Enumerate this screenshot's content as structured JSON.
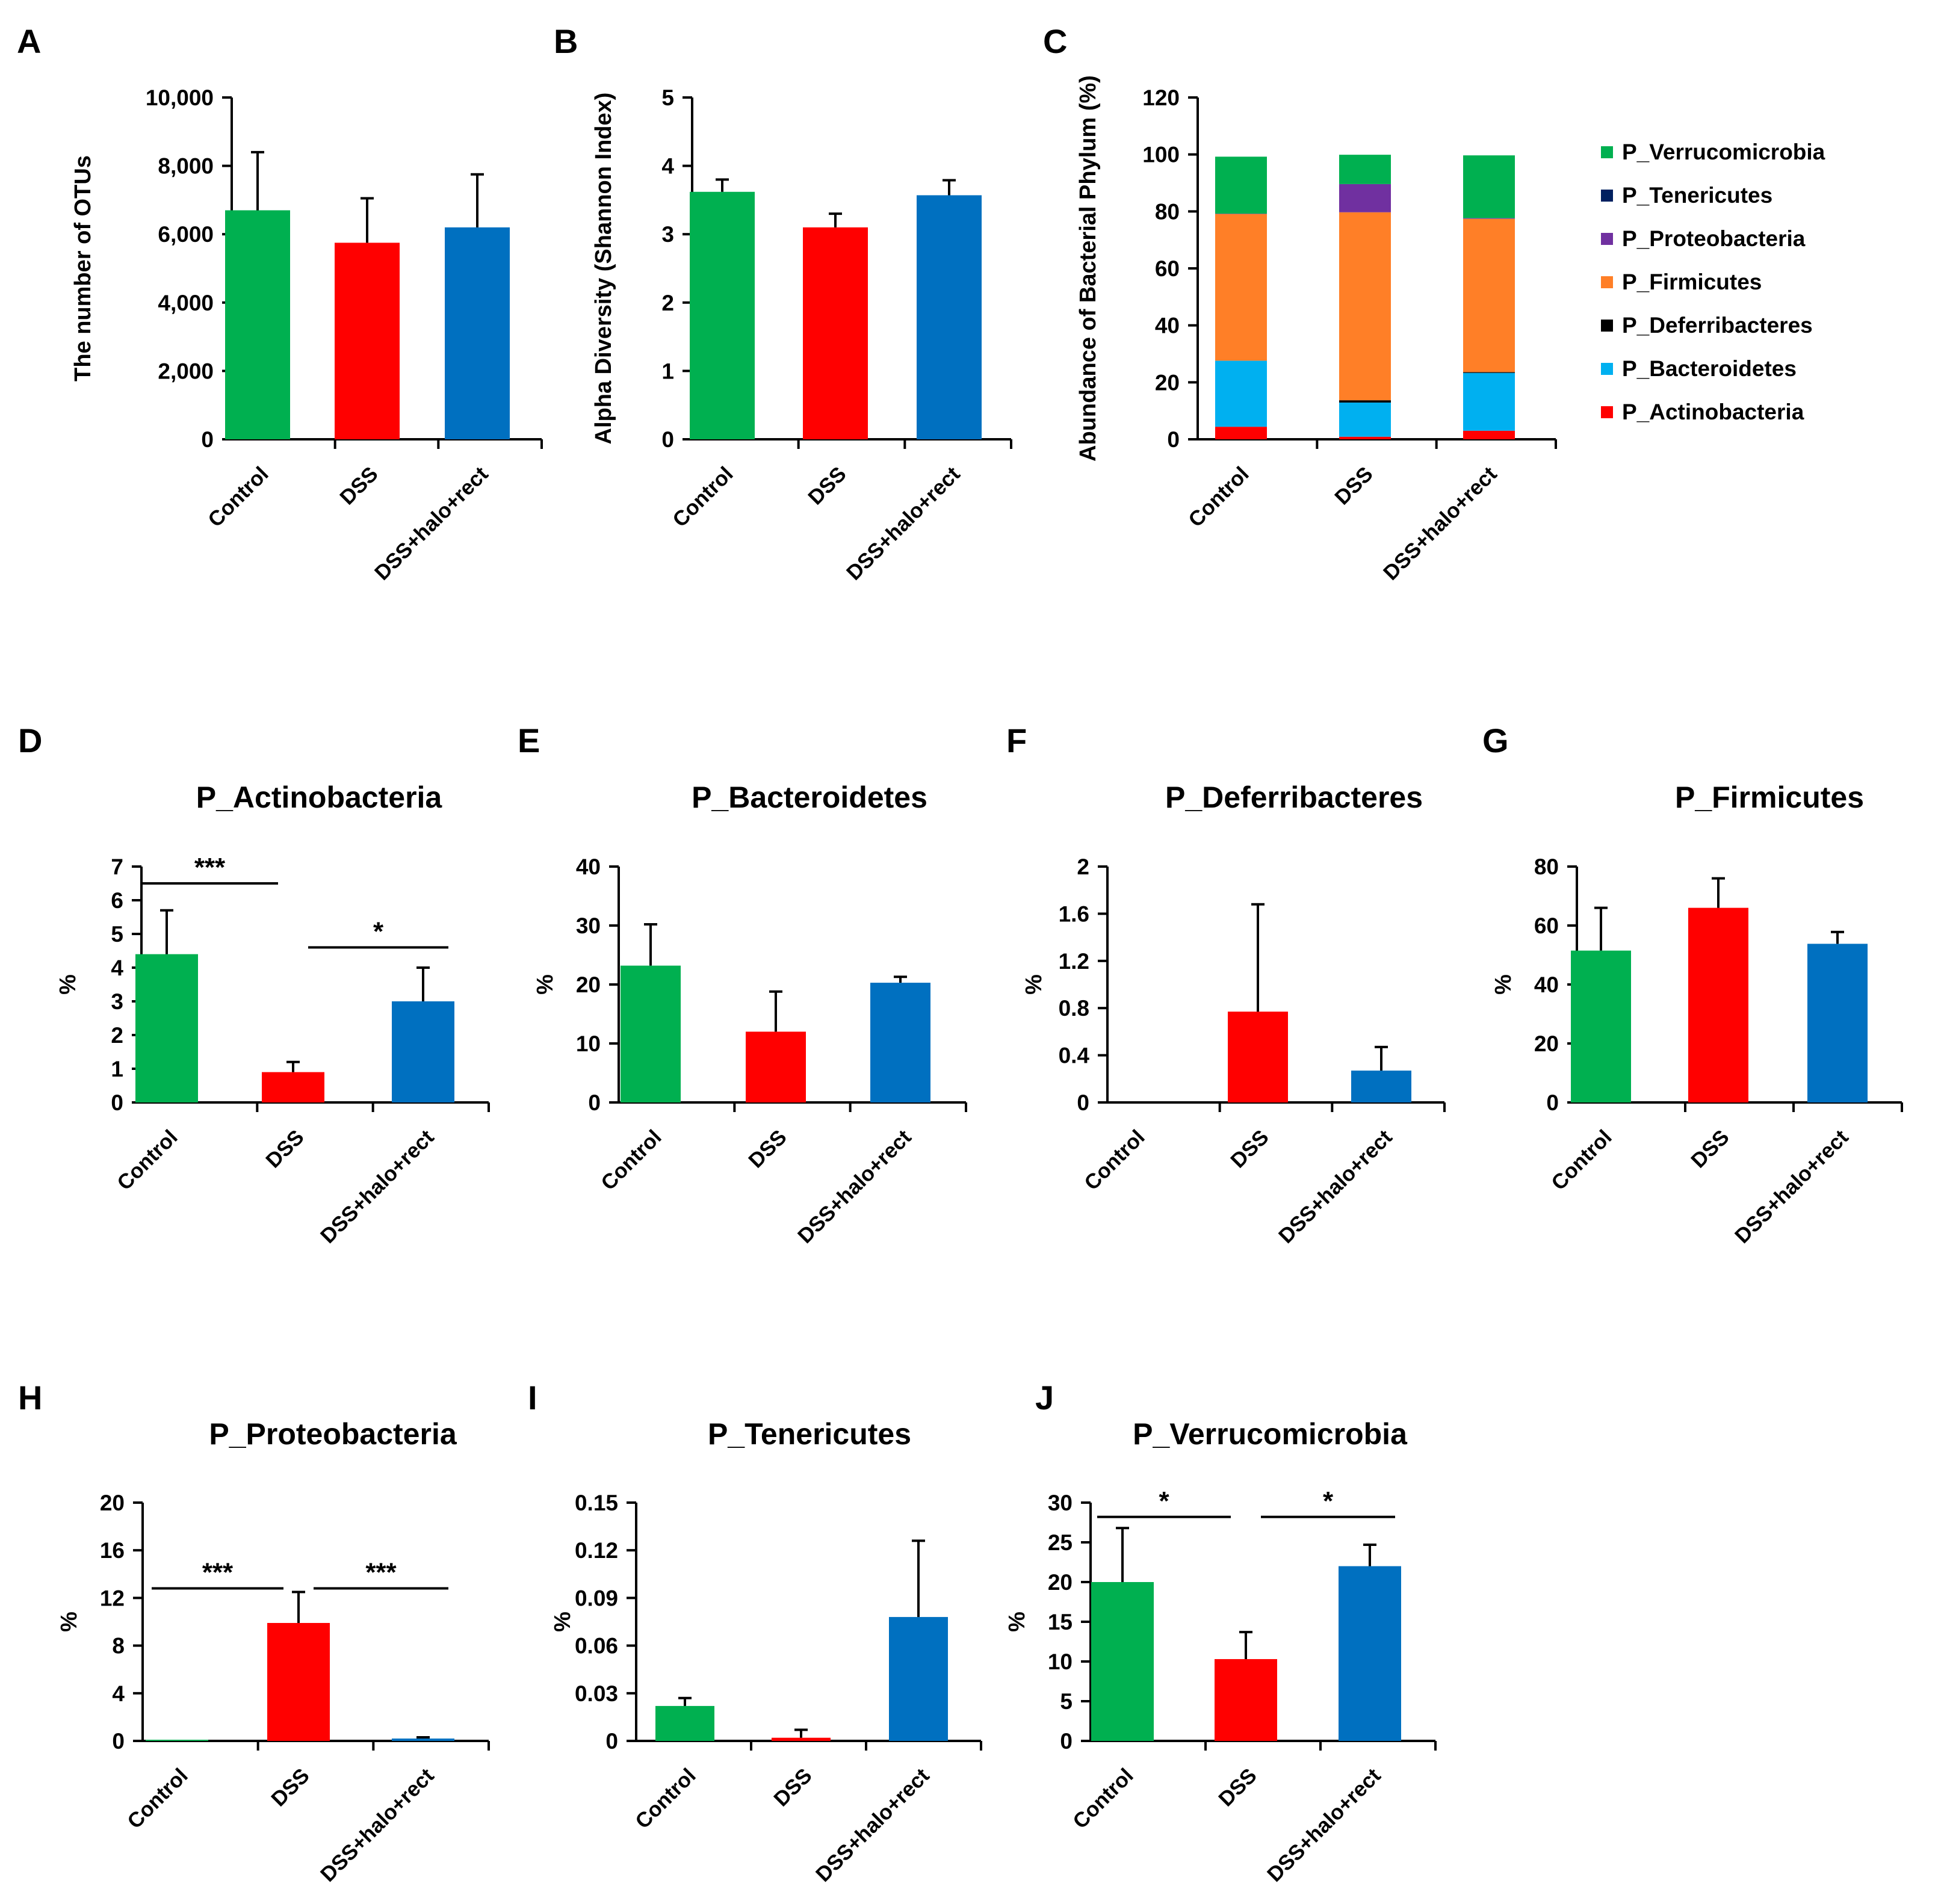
{
  "colors": {
    "control": "#00B050",
    "dss": "#FF0000",
    "treated": "#0070C0",
    "verrucomicrobia": "#00B050",
    "tenericutes": "#002060",
    "proteobacteria": "#7030A0",
    "firmicutes": "#FF7F27",
    "deferribacteres": "#000000",
    "bacteroidetes": "#00B0F0",
    "actinobacteria": "#FF0000"
  },
  "chart_data": [
    {
      "id": "A",
      "letter": "A",
      "type": "bar",
      "title": "",
      "categories": [
        "Control",
        "DSS",
        "DSS+halo+rect"
      ],
      "values": [
        6700,
        5750,
        6200
      ],
      "errors": [
        1700,
        1300,
        1550
      ],
      "ylabel": "The number of OTUs",
      "ylim": [
        0,
        10000
      ],
      "ticks": [
        "0",
        "2,000",
        "4,000",
        "6,000",
        "8,000",
        "10,000"
      ],
      "significance": []
    },
    {
      "id": "B",
      "letter": "B",
      "type": "bar",
      "title": "",
      "categories": [
        "Control",
        "DSS",
        "DSS+halo+rect"
      ],
      "values": [
        3.62,
        3.1,
        3.57
      ],
      "errors": [
        0.18,
        0.2,
        0.22
      ],
      "ylabel": "Alpha Diversity (Shannon Index)",
      "ylim": [
        0,
        5
      ],
      "ticks": [
        "0",
        "1",
        "2",
        "3",
        "4",
        "5"
      ],
      "significance": []
    },
    {
      "id": "C",
      "letter": "C",
      "type": "stacked-bar",
      "title": "",
      "categories": [
        "Control",
        "DSS",
        "DSS+halo+rect"
      ],
      "ylabel": "Abundance of Bacterial Phylum (%)",
      "ylim": [
        0,
        120
      ],
      "ticks": [
        "0",
        "20",
        "40",
        "60",
        "80",
        "100",
        "120"
      ],
      "series": [
        {
          "name": "P_Actinobacteria",
          "color_key": "actinobacteria",
          "values": [
            4.4,
            0.9,
            3.0
          ]
        },
        {
          "name": "P_Bacteroidetes",
          "color_key": "bacteroidetes",
          "values": [
            23.2,
            12.0,
            20.3
          ]
        },
        {
          "name": "P_Deferribacteres",
          "color_key": "deferribacteres",
          "values": [
            0.0,
            0.8,
            0.3
          ]
        },
        {
          "name": "P_Firmicutes",
          "color_key": "firmicutes",
          "values": [
            51.5,
            66.0,
            53.8
          ]
        },
        {
          "name": "P_Proteobacteria",
          "color_key": "proteobacteria",
          "values": [
            0.1,
            9.9,
            0.2
          ]
        },
        {
          "name": "P_Tenericutes",
          "color_key": "tenericutes",
          "values": [
            0.02,
            0.0,
            0.08
          ]
        },
        {
          "name": "P_Verrucomicrobia",
          "color_key": "verrucomicrobia",
          "values": [
            20.0,
            10.3,
            22.0
          ]
        }
      ],
      "legend": [
        "P_Verrucomicrobia",
        "P_Tenericutes",
        "P_Proteobacteria",
        "P_Firmicutes",
        "P_Deferribacteres",
        "P_Bacteroidetes",
        "P_Actinobacteria"
      ]
    },
    {
      "id": "D",
      "letter": "D",
      "type": "bar",
      "title": "P_Actinobacteria",
      "categories": [
        "Control",
        "DSS",
        "DSS+halo+rect"
      ],
      "values": [
        4.4,
        0.9,
        3.0
      ],
      "errors": [
        1.3,
        0.3,
        1.0
      ],
      "ylabel": "%",
      "ylim": [
        0,
        7
      ],
      "ticks": [
        "0",
        "1",
        "2",
        "3",
        "4",
        "5",
        "6",
        "7"
      ],
      "significance": [
        {
          "from": 0,
          "to": 1,
          "label": "***",
          "y": 6.5
        },
        {
          "from": 1,
          "to": 2,
          "label": "*",
          "y": 4.6
        }
      ]
    },
    {
      "id": "E",
      "letter": "E",
      "type": "bar",
      "title": "P_Bacteroidetes",
      "categories": [
        "Control",
        "DSS",
        "DSS+halo+rect"
      ],
      "values": [
        23.2,
        12.0,
        20.3
      ],
      "errors": [
        7.0,
        6.8,
        1.0
      ],
      "ylabel": "%",
      "ylim": [
        0,
        40
      ],
      "ticks": [
        "0",
        "10",
        "20",
        "30",
        "40"
      ],
      "significance": []
    },
    {
      "id": "F",
      "letter": "F",
      "type": "bar",
      "title": "P_Deferribacteres",
      "categories": [
        "Control",
        "DSS",
        "DSS+halo+rect"
      ],
      "values": [
        0.0,
        0.77,
        0.27
      ],
      "errors": [
        0.0,
        0.91,
        0.2
      ],
      "ylabel": "%",
      "ylim": [
        0,
        2
      ],
      "ticks": [
        "0",
        "0.4",
        "0.8",
        "1.2",
        "1.6",
        "2"
      ],
      "significance": []
    },
    {
      "id": "G",
      "letter": "G",
      "type": "bar",
      "title": "P_Firmicutes",
      "categories": [
        "Control",
        "DSS",
        "DSS+halo+rect"
      ],
      "values": [
        51.5,
        66.0,
        53.8
      ],
      "errors": [
        14.5,
        10.0,
        4.0
      ],
      "ylabel": "%",
      "ylim": [
        0,
        80
      ],
      "ticks": [
        "0",
        "20",
        "40",
        "60",
        "80"
      ],
      "significance": []
    },
    {
      "id": "H",
      "letter": "H",
      "type": "bar",
      "title": "P_Proteobacteria",
      "categories": [
        "Control",
        "DSS",
        "DSS+halo+rect"
      ],
      "values": [
        0.1,
        9.9,
        0.2
      ],
      "errors": [
        0.0,
        2.6,
        0.1
      ],
      "ylabel": "%",
      "ylim": [
        0,
        20
      ],
      "ticks": [
        "0",
        "4",
        "8",
        "12",
        "16",
        "20"
      ],
      "significance": [
        {
          "from": 0,
          "to": 1,
          "label": "***",
          "y": 12.8
        },
        {
          "from": 1,
          "to": 2,
          "label": "***",
          "y": 12.8
        }
      ]
    },
    {
      "id": "I",
      "letter": "I",
      "type": "bar",
      "title": "P_Tenericutes",
      "categories": [
        "Control",
        "DSS",
        "DSS+halo+rect"
      ],
      "values": [
        0.022,
        0.002,
        0.078
      ],
      "errors": [
        0.005,
        0.005,
        0.048
      ],
      "ylabel": "%",
      "ylim": [
        0,
        0.15
      ],
      "ticks": [
        "0",
        "0.03",
        "0.06",
        "0.09",
        "0.12",
        "0.15"
      ],
      "significance": []
    },
    {
      "id": "J",
      "letter": "J",
      "type": "bar",
      "title": "P_Verrucomicrobia",
      "categories": [
        "Control",
        "DSS",
        "DSS+halo+rect"
      ],
      "values": [
        20.0,
        10.3,
        22.0
      ],
      "errors": [
        6.8,
        3.4,
        2.7
      ],
      "ylabel": "%",
      "ylim": [
        0,
        30
      ],
      "ticks": [
        "0",
        "5",
        "10",
        "15",
        "20",
        "25",
        "30"
      ],
      "significance": [
        {
          "from": 0,
          "to": 1,
          "label": "*",
          "y": 28.2
        },
        {
          "from": 1,
          "to": 2,
          "label": "*",
          "y": 28.2
        }
      ]
    }
  ]
}
